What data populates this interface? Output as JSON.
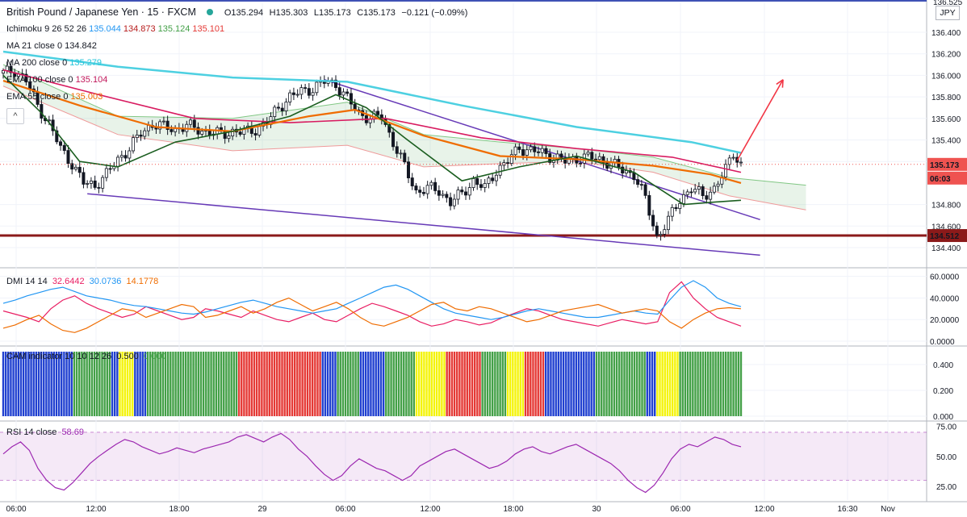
{
  "header": {
    "symbol": "British Pound / Japanese Yen · 15 · FXCM",
    "open": "O135.294",
    "high": "H135.303",
    "low": "L135.173",
    "close": "C135.173",
    "change": "−0.121 (−0.09%)"
  },
  "currency_button": "JPY",
  "settings_button": "^",
  "legend": [
    {
      "name": "Ichimoku 9 26 52 26",
      "values": [
        "135.044",
        "134.873",
        "135.124",
        "135.101"
      ],
      "colors": [
        "#2196f3",
        "#b71c1c",
        "#43a047",
        "#e53935"
      ]
    },
    {
      "name": "MA 21 close 0",
      "values": [
        "134.842"
      ],
      "colors": [
        "#131722"
      ]
    },
    {
      "name": "MA 200 close 0",
      "values": [
        "135.279"
      ],
      "colors": [
        "#26c6da"
      ]
    },
    {
      "name": "EMA 100 close 0",
      "values": [
        "135.104"
      ],
      "colors": [
        "#c2185b"
      ]
    },
    {
      "name": "EMA 55 close 0",
      "values": [
        "135.003"
      ],
      "colors": [
        "#ef6c00"
      ]
    }
  ],
  "price_axis": {
    "ticks": [
      "136.400",
      "136.200",
      "136.000",
      "135.800",
      "135.600",
      "135.400",
      "135.200",
      "134.800",
      "134.600",
      "134.400"
    ],
    "top_partial": "136.525",
    "current_price": "135.173",
    "countdown": "06:03",
    "support_level": "134.512"
  },
  "time_axis": [
    "06:00",
    "12:00",
    "18:00",
    "29",
    "06:00",
    "12:00",
    "18:00",
    "30",
    "06:00",
    "12:00",
    "16:30",
    "Nov"
  ],
  "dmi": {
    "label": "DMI 14 14",
    "values": [
      "32.6442",
      "30.0736",
      "14.1778"
    ],
    "colors": [
      "#e91e63",
      "#2196f3",
      "#ef6c00"
    ],
    "ticks": [
      "60.0000",
      "40.0000",
      "20.0000",
      "0.0000"
    ]
  },
  "cam": {
    "label": "CAM indicator 10 10 12 26",
    "values": [
      "0.500",
      "0.000"
    ],
    "colors": [
      "#131722",
      "#43a047"
    ],
    "ticks": [
      "0.400",
      "0.200",
      "0.000"
    ]
  },
  "rsi": {
    "label": "RSI 14 close",
    "value": "58.69",
    "color": "#9c27b0",
    "ticks": [
      "75.00",
      "50.00",
      "25.00"
    ]
  },
  "chart_data": [
    {
      "type": "candlestick",
      "title": "British Pound / Japanese Yen · 15 · FXCM",
      "ylim": [
        134.3,
        136.53
      ],
      "x_ticks": [
        "06:00",
        "12:00",
        "18:00",
        "29",
        "06:00",
        "12:00",
        "18:00",
        "30",
        "06:00",
        "12:00",
        "16:30",
        "Nov"
      ],
      "close_path": [
        [
          0,
          136.02
        ],
        [
          3,
          136.05
        ],
        [
          6,
          135.95
        ],
        [
          9,
          135.72
        ],
        [
          12,
          135.55
        ],
        [
          15,
          135.32
        ],
        [
          18,
          135.18
        ],
        [
          21,
          135.0
        ],
        [
          24,
          134.98
        ],
        [
          27,
          135.08
        ],
        [
          30,
          135.22
        ],
        [
          33,
          135.32
        ],
        [
          36,
          135.46
        ],
        [
          39,
          135.55
        ],
        [
          42,
          135.52
        ],
        [
          45,
          135.5
        ],
        [
          48,
          135.53
        ],
        [
          51,
          135.5
        ],
        [
          54,
          135.47
        ],
        [
          57,
          135.45
        ],
        [
          60,
          135.48
        ],
        [
          63,
          135.47
        ],
        [
          66,
          135.5
        ],
        [
          69,
          135.56
        ],
        [
          72,
          135.7
        ],
        [
          75,
          135.8
        ],
        [
          78,
          135.85
        ],
        [
          81,
          135.88
        ],
        [
          84,
          135.94
        ],
        [
          87,
          135.92
        ],
        [
          90,
          135.78
        ],
        [
          93,
          135.65
        ],
        [
          96,
          135.6
        ],
        [
          99,
          135.62
        ],
        [
          102,
          135.38
        ],
        [
          105,
          135.15
        ],
        [
          108,
          134.92
        ],
        [
          111,
          134.95
        ],
        [
          114,
          134.93
        ],
        [
          117,
          134.82
        ],
        [
          120,
          134.9
        ],
        [
          123,
          135.02
        ],
        [
          126,
          134.95
        ],
        [
          129,
          135.12
        ],
        [
          132,
          135.2
        ],
        [
          135,
          135.33
        ],
        [
          138,
          135.3
        ],
        [
          141,
          135.28
        ],
        [
          144,
          135.24
        ],
        [
          147,
          135.2
        ],
        [
          150,
          135.23
        ],
        [
          153,
          135.24
        ],
        [
          156,
          135.22
        ],
        [
          159,
          135.18
        ],
        [
          162,
          135.12
        ],
        [
          165,
          135.08
        ],
        [
          168,
          134.85
        ],
        [
          171,
          134.5
        ],
        [
          174,
          134.65
        ],
        [
          177,
          134.85
        ],
        [
          180,
          134.95
        ],
        [
          183,
          134.88
        ],
        [
          186,
          134.95
        ],
        [
          189,
          135.12
        ],
        [
          191,
          135.29
        ],
        [
          193,
          135.17
        ]
      ],
      "ema55": [
        [
          0,
          135.95
        ],
        [
          20,
          135.72
        ],
        [
          40,
          135.52
        ],
        [
          60,
          135.48
        ],
        [
          80,
          135.62
        ],
        [
          92,
          135.68
        ],
        [
          110,
          135.44
        ],
        [
          130,
          135.25
        ],
        [
          150,
          135.22
        ],
        [
          170,
          135.16
        ],
        [
          185,
          135.08
        ],
        [
          193,
          135.0
        ]
      ],
      "ma200": [
        [
          0,
          136.22
        ],
        [
          30,
          136.08
        ],
        [
          60,
          135.98
        ],
        [
          90,
          135.94
        ],
        [
          120,
          135.72
        ],
        [
          150,
          135.52
        ],
        [
          180,
          135.38
        ],
        [
          193,
          135.28
        ]
      ],
      "ema100": [
        [
          0,
          136.05
        ],
        [
          25,
          135.82
        ],
        [
          50,
          135.6
        ],
        [
          75,
          135.56
        ],
        [
          100,
          135.6
        ],
        [
          125,
          135.42
        ],
        [
          150,
          135.32
        ],
        [
          175,
          135.24
        ],
        [
          193,
          135.1
        ]
      ],
      "ma21": [
        [
          0,
          136.0
        ],
        [
          10,
          135.65
        ],
        [
          20,
          135.2
        ],
        [
          30,
          135.15
        ],
        [
          45,
          135.38
        ],
        [
          60,
          135.48
        ],
        [
          75,
          135.62
        ],
        [
          87,
          135.82
        ],
        [
          95,
          135.7
        ],
        [
          105,
          135.42
        ],
        [
          120,
          135.02
        ],
        [
          135,
          135.15
        ],
        [
          150,
          135.25
        ],
        [
          165,
          135.1
        ],
        [
          178,
          134.8
        ],
        [
          185,
          134.82
        ],
        [
          193,
          134.84
        ]
      ],
      "trendlines": {
        "upper": [
          [
            84,
            135.96
          ],
          [
            198,
            134.66
          ]
        ],
        "lower": [
          [
            22,
            134.9
          ],
          [
            198,
            134.33
          ]
        ],
        "support": 134.512
      },
      "projection_arrow": {
        "from": [
          192,
          135.21
        ],
        "to": [
          204,
          135.96
        ]
      }
    },
    {
      "type": "line",
      "title": "DMI 14 14",
      "ylim": [
        0,
        62
      ],
      "series": [
        {
          "name": "+DI",
          "values": [
            28,
            25,
            22,
            18,
            30,
            38,
            42,
            35,
            30,
            26,
            22,
            25,
            32,
            28,
            24,
            20,
            22,
            30,
            28,
            25,
            22,
            28,
            24,
            20,
            18,
            22,
            26,
            20,
            18,
            24,
            30,
            35,
            32,
            28,
            24,
            18,
            14,
            16,
            20,
            18,
            15,
            17,
            22,
            26,
            30,
            28,
            24,
            20,
            18,
            16,
            14,
            17,
            20,
            18,
            16,
            18,
            45,
            55,
            40,
            30,
            22,
            18,
            14
          ]
        },
        {
          "name": "ADX",
          "values": [
            35,
            38,
            42,
            45,
            48,
            50,
            46,
            42,
            40,
            38,
            35,
            33,
            32,
            30,
            28,
            26,
            25,
            27,
            30,
            33,
            36,
            38,
            35,
            32,
            30,
            28,
            26,
            28,
            30,
            35,
            40,
            45,
            50,
            52,
            48,
            42,
            36,
            30,
            26,
            24,
            22,
            20,
            22,
            25,
            28,
            30,
            28,
            26,
            24,
            22,
            22,
            24,
            26,
            28,
            26,
            25,
            38,
            50,
            56,
            50,
            40,
            35,
            32
          ]
        },
        {
          "name": "-DI",
          "values": [
            12,
            15,
            20,
            24,
            16,
            10,
            8,
            12,
            18,
            24,
            30,
            28,
            22,
            26,
            30,
            34,
            32,
            22,
            24,
            28,
            32,
            26,
            30,
            36,
            40,
            34,
            28,
            32,
            36,
            30,
            22,
            16,
            14,
            18,
            22,
            28,
            34,
            36,
            30,
            28,
            32,
            30,
            26,
            22,
            18,
            20,
            24,
            28,
            30,
            32,
            34,
            30,
            26,
            28,
            30,
            28,
            18,
            12,
            20,
            26,
            30,
            31,
            30
          ]
        }
      ]
    },
    {
      "type": "bar",
      "title": "CAM indicator 10 10 12 26",
      "ylim": [
        0,
        0.5
      ],
      "note_colors": {
        "g": "#43a047",
        "b": "#2040d0",
        "y": "#f4f40a",
        "r": "#e53935"
      },
      "bar_colors": "bbbbbbbbbbbbbbbbbbbbbbbbbbbbgggggggggggggggbbbyyyyyybbbbbggggggggggggggggggggggggggggggggggggrrrrrrrrrrrrrrrrrrrrrrrrrrrrrrrrrbbbbbbgggggggggbbbbbbbbbbggggggggggggyyyyyyyyyyyyrrrrrrrrrrrrrrggggggggggyyyyyyyrrrrrrrrbbbbbbbbbbbbbbbbbbbbggggggggggggggggggggbbbbyyyyyyyyyggggggggggggggggggggggggg",
      "value": 0.5
    },
    {
      "type": "line",
      "title": "RSI 14 close",
      "ylim": [
        15,
        76
      ],
      "bands": [
        30,
        70
      ],
      "values": [
        52,
        58,
        62,
        55,
        40,
        30,
        24,
        22,
        28,
        36,
        44,
        50,
        55,
        60,
        64,
        62,
        58,
        55,
        52,
        54,
        57,
        55,
        53,
        56,
        58,
        60,
        62,
        66,
        68,
        65,
        62,
        66,
        69,
        64,
        56,
        50,
        42,
        35,
        30,
        34,
        42,
        48,
        44,
        40,
        38,
        34,
        30,
        34,
        42,
        46,
        50,
        54,
        56,
        52,
        48,
        44,
        40,
        42,
        46,
        52,
        56,
        58,
        54,
        52,
        55,
        58,
        60,
        56,
        52,
        48,
        44,
        38,
        30,
        24,
        20,
        26,
        36,
        48,
        56,
        60,
        58,
        62,
        66,
        64,
        60,
        58
      ]
    }
  ]
}
